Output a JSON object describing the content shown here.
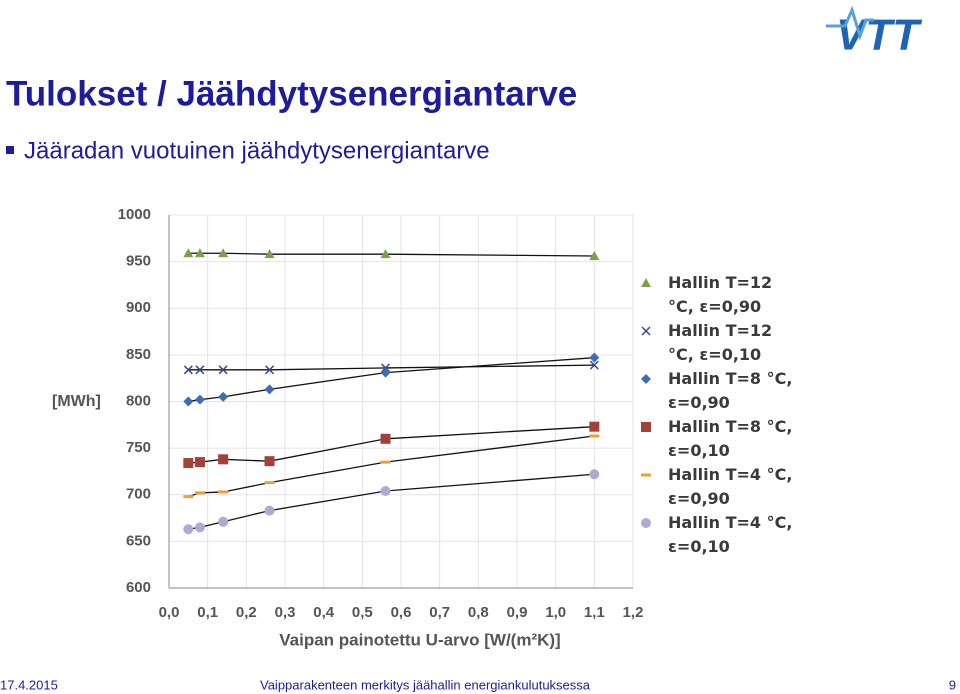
{
  "header": {
    "title": "Tulokset / Jäähdytysenergiantarve",
    "bullet": "Jääradan vuotuinen jäähdytysenergiantarve",
    "logo": "VTT"
  },
  "footer": {
    "date": "17.4.2015",
    "text": "Vaipparakenteen merkitys jäähallin energiankulutuksessa",
    "page": "9"
  },
  "chart_data": {
    "type": "scatter",
    "y_label": "[MWh]",
    "x_label": "Vaipan painotettu U-arvo [W/(m²K)]",
    "x": [
      0.05,
      0.08,
      0.14,
      0.26,
      0.56,
      1.1
    ],
    "series": [
      {
        "name": "Hallin T=12 °C, ε=0,90",
        "color": "#7aa24a",
        "marker": "triangle",
        "values": [
          959,
          959,
          959,
          958,
          958,
          956
        ]
      },
      {
        "name": "Hallin T=12 °C, ε=0,10",
        "color": "#3b4a8c",
        "marker": "x",
        "values": [
          834,
          834,
          834,
          834,
          836,
          839
        ]
      },
      {
        "name": "Hallin T=8 °C, ε=0,90",
        "color": "#3c6eb4",
        "marker": "diamond",
        "values": [
          800,
          802,
          805,
          813,
          831,
          847
        ]
      },
      {
        "name": "Hallin T=8 °C, ε=0,10",
        "color": "#a3403a",
        "marker": "square",
        "values": [
          734,
          735,
          738,
          736,
          760,
          773
        ]
      },
      {
        "name": "Hallin T=4 °C, ε=0,90",
        "color": "#f0a030",
        "marker": "dash",
        "values": [
          698,
          702,
          703,
          713,
          735,
          763
        ]
      },
      {
        "name": "Hallin T=4 °C, ε=0,10",
        "color": "#b2a9d2",
        "marker": "circle",
        "values": [
          663,
          665,
          671,
          683,
          704,
          722
        ]
      }
    ],
    "xlim": [
      0,
      1.2
    ],
    "xticks": [
      {
        "value": 0,
        "label": "0,0"
      },
      {
        "value": 0.1,
        "label": "0,1"
      },
      {
        "value": 0.2,
        "label": "0,2"
      },
      {
        "value": 0.3,
        "label": "0,3"
      },
      {
        "value": 0.4,
        "label": "0,4"
      },
      {
        "value": 0.5,
        "label": "0,5"
      },
      {
        "value": 0.6,
        "label": "0,6"
      },
      {
        "value": 0.7,
        "label": "0,7"
      },
      {
        "value": 0.8,
        "label": "0,8"
      },
      {
        "value": 0.9,
        "label": "0,9"
      },
      {
        "value": 1.0,
        "label": "1,0"
      },
      {
        "value": 1.1,
        "label": "1,1"
      },
      {
        "value": 1.2,
        "label": "1,2"
      }
    ],
    "ylim": [
      600,
      1000
    ],
    "yticks": [
      600,
      650,
      700,
      750,
      800,
      850,
      900,
      950,
      1000
    ],
    "grid": true
  }
}
